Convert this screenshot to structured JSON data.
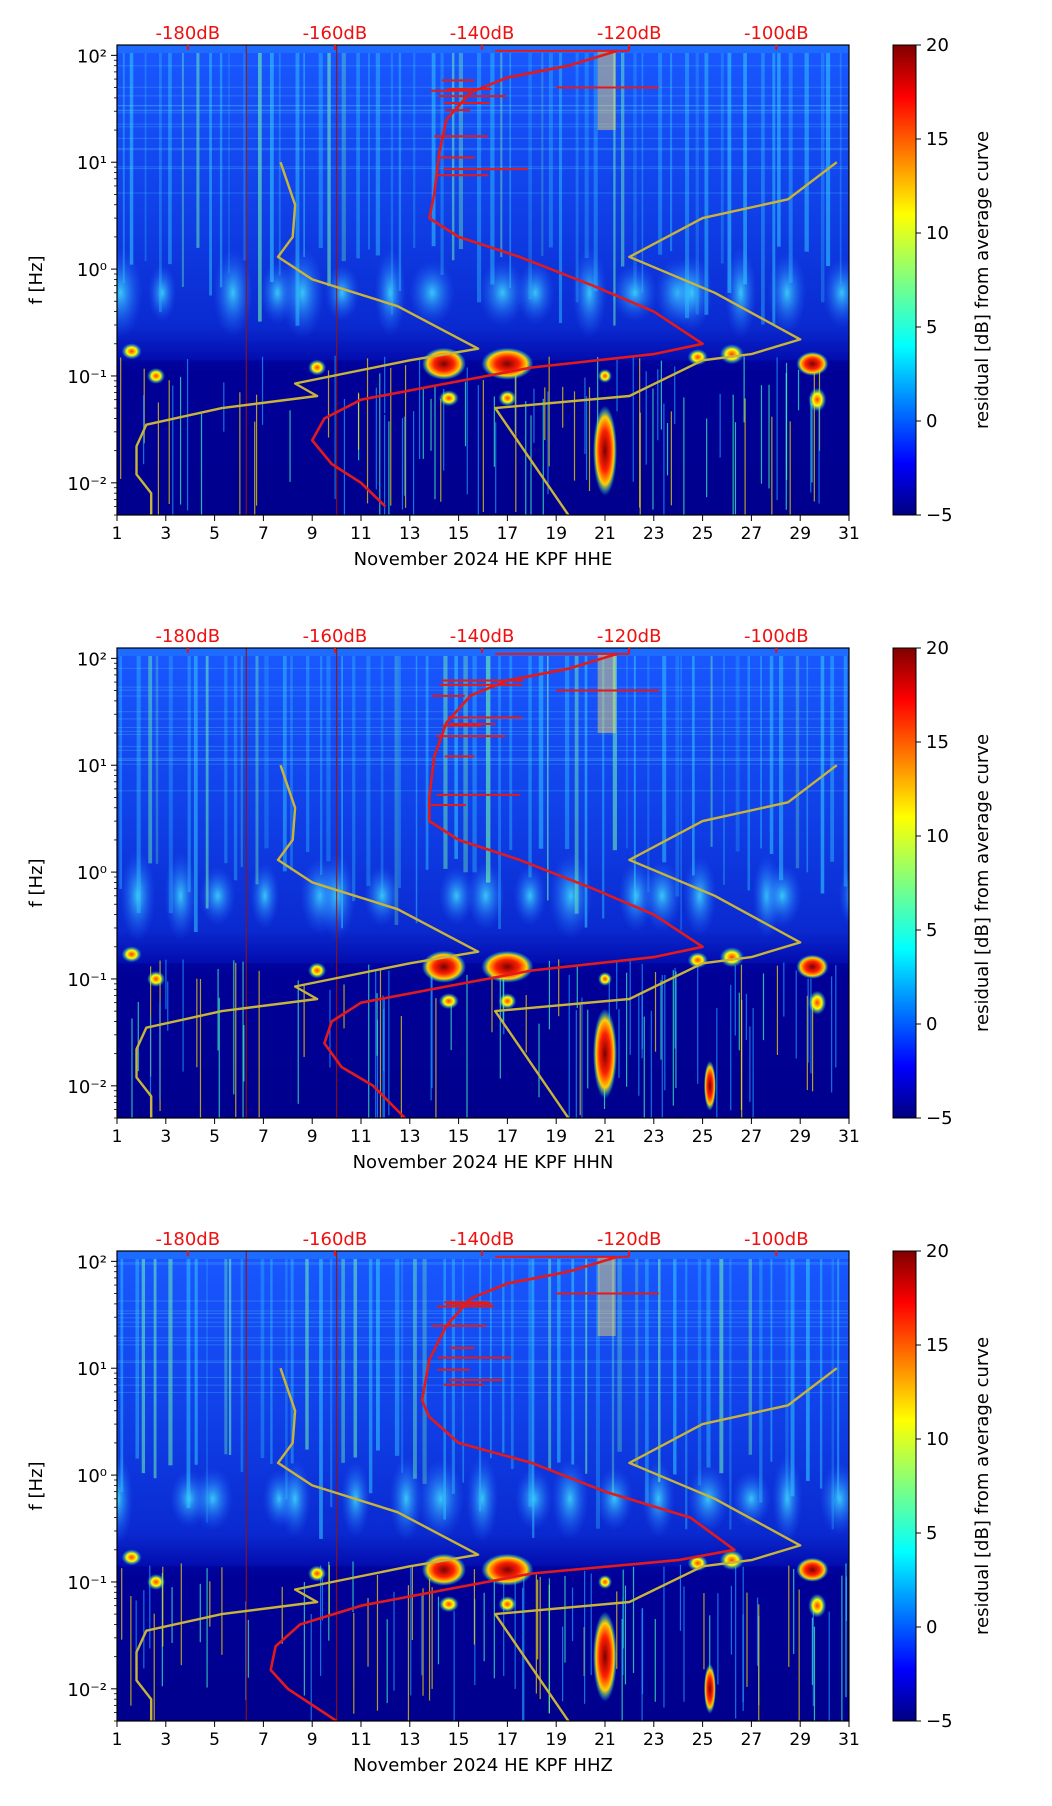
{
  "figure": {
    "colorbar_label": "residual [dB] from average curve",
    "colorbar_ticks": [
      "20",
      "15",
      "10",
      "5",
      "0",
      "−5"
    ],
    "colorbar_range": [
      -5,
      20
    ],
    "ylabel": "f [Hz]",
    "y_ticks": [
      "10²",
      "10¹",
      "10⁰",
      "10⁻¹",
      "10⁻²"
    ],
    "x_ticks": [
      "1",
      "3",
      "5",
      "7",
      "9",
      "11",
      "13",
      "15",
      "17",
      "19",
      "21",
      "23",
      "25",
      "27",
      "29",
      "31"
    ],
    "db_ticks": [
      "-180dB",
      "-160dB",
      "-140dB",
      "-120dB",
      "-100dB"
    ],
    "colors": {
      "red_curve": "#e31a1c",
      "nlnm_nhnm": "#c8b43a",
      "db_label": "#ee1111"
    }
  },
  "chart_data": [
    {
      "type": "heatmap",
      "title": "",
      "xlabel": "November 2024 HE KPF  HHE",
      "ylabel": "f [Hz]",
      "xlim": [
        1,
        31
      ],
      "ylim": [
        0.005,
        125
      ],
      "yscale": "log",
      "secondary_x": {
        "ticks": [
          -180,
          -160,
          -140,
          -120,
          -100
        ],
        "unit": "dB"
      },
      "curves": [
        {
          "name": "median PSD",
          "color": "#e31a1c",
          "points_day_freq": [
            [
              21.5,
              110
            ],
            [
              19.5,
              80
            ],
            [
              17,
              62
            ],
            [
              15.5,
              45
            ],
            [
              14.5,
              25
            ],
            [
              14.2,
              12
            ],
            [
              14,
              5
            ],
            [
              13.8,
              3
            ],
            [
              15,
              2
            ],
            [
              17.5,
              1.3
            ],
            [
              20.5,
              0.7
            ],
            [
              23,
              0.4
            ],
            [
              25,
              0.2
            ],
            [
              23,
              0.16
            ],
            [
              18,
              0.12
            ],
            [
              14.5,
              0.085
            ],
            [
              11,
              0.06
            ],
            [
              9.5,
              0.04
            ],
            [
              9,
              0.025
            ],
            [
              9.8,
              0.015
            ],
            [
              11,
              0.01
            ],
            [
              12,
              0.006
            ]
          ]
        },
        {
          "name": "NHNM",
          "color": "#c8b43a",
          "points_day_freq": [
            [
              30.5,
              10
            ],
            [
              28.5,
              4.5
            ],
            [
              25,
              3
            ],
            [
              22,
              1.3
            ],
            [
              25.5,
              0.6
            ],
            [
              29,
              0.22
            ],
            [
              27,
              0.16
            ],
            [
              25,
              0.14
            ],
            [
              22,
              0.065
            ],
            [
              16.5,
              0.05
            ],
            [
              19.5,
              0.005
            ]
          ]
        },
        {
          "name": "NLNM",
          "color": "#c8b43a",
          "points_day_freq": [
            [
              7.7,
              10
            ],
            [
              8.3,
              4
            ],
            [
              8.2,
              2
            ],
            [
              7.6,
              1.3
            ],
            [
              9,
              0.8
            ],
            [
              12.5,
              0.45
            ],
            [
              15.8,
              0.18
            ],
            [
              13,
              0.14
            ],
            [
              8.3,
              0.085
            ],
            [
              9.2,
              0.065
            ],
            [
              5.3,
              0.05
            ],
            [
              2.2,
              0.035
            ],
            [
              1.8,
              0.022
            ],
            [
              1.8,
              0.012
            ],
            [
              2.4,
              0.008
            ],
            [
              2.4,
              0.005
            ]
          ]
        }
      ]
    },
    {
      "type": "heatmap",
      "title": "",
      "xlabel": "November 2024 HE KPF  HHN",
      "ylabel": "f [Hz]",
      "xlim": [
        1,
        31
      ],
      "ylim": [
        0.005,
        125
      ],
      "yscale": "log",
      "secondary_x": {
        "ticks": [
          -180,
          -160,
          -140,
          -120,
          -100
        ],
        "unit": "dB"
      },
      "curves": [
        {
          "name": "median PSD",
          "color": "#e31a1c",
          "points_day_freq": [
            [
              21.5,
              110
            ],
            [
              19.5,
              80
            ],
            [
              17,
              62
            ],
            [
              15.5,
              45
            ],
            [
              14.5,
              25
            ],
            [
              14,
              12
            ],
            [
              13.8,
              5
            ],
            [
              13.8,
              3
            ],
            [
              15,
              2
            ],
            [
              17.5,
              1.3
            ],
            [
              20.5,
              0.7
            ],
            [
              23,
              0.4
            ],
            [
              25,
              0.2
            ],
            [
              23,
              0.16
            ],
            [
              18,
              0.12
            ],
            [
              14.5,
              0.085
            ],
            [
              11,
              0.06
            ],
            [
              9.8,
              0.04
            ],
            [
              9.5,
              0.025
            ],
            [
              10.2,
              0.015
            ],
            [
              11.5,
              0.01
            ],
            [
              12.8,
              0.005
            ]
          ]
        },
        {
          "name": "NHNM",
          "color": "#c8b43a",
          "points_day_freq": [
            [
              30.5,
              10
            ],
            [
              28.5,
              4.5
            ],
            [
              25,
              3
            ],
            [
              22,
              1.3
            ],
            [
              25.5,
              0.6
            ],
            [
              29,
              0.22
            ],
            [
              27,
              0.16
            ],
            [
              25,
              0.14
            ],
            [
              22,
              0.065
            ],
            [
              16.5,
              0.05
            ],
            [
              19.5,
              0.005
            ]
          ]
        },
        {
          "name": "NLNM",
          "color": "#c8b43a",
          "points_day_freq": [
            [
              7.7,
              10
            ],
            [
              8.3,
              4
            ],
            [
              8.2,
              2
            ],
            [
              7.6,
              1.3
            ],
            [
              9,
              0.8
            ],
            [
              12.5,
              0.45
            ],
            [
              15.8,
              0.18
            ],
            [
              13,
              0.14
            ],
            [
              8.3,
              0.085
            ],
            [
              9.2,
              0.065
            ],
            [
              5.3,
              0.05
            ],
            [
              2.2,
              0.035
            ],
            [
              1.8,
              0.022
            ],
            [
              1.8,
              0.012
            ],
            [
              2.4,
              0.008
            ],
            [
              2.4,
              0.005
            ]
          ]
        }
      ]
    },
    {
      "type": "heatmap",
      "title": "",
      "xlabel": "November 2024 HE KPF  HHZ",
      "ylabel": "f [Hz]",
      "xlim": [
        1,
        31
      ],
      "ylim": [
        0.005,
        125
      ],
      "yscale": "log",
      "secondary_x": {
        "ticks": [
          -180,
          -160,
          -140,
          -120,
          -100
        ],
        "unit": "dB"
      },
      "curves": [
        {
          "name": "median PSD",
          "color": "#e31a1c",
          "points_day_freq": [
            [
              21.5,
              110
            ],
            [
              19.5,
              80
            ],
            [
              17,
              62
            ],
            [
              15.5,
              45
            ],
            [
              14.5,
              25
            ],
            [
              13.8,
              12
            ],
            [
              13.5,
              5
            ],
            [
              13.8,
              3.5
            ],
            [
              15,
              2
            ],
            [
              18,
              1.3
            ],
            [
              21,
              0.7
            ],
            [
              24.5,
              0.4
            ],
            [
              26.3,
              0.2
            ],
            [
              24,
              0.16
            ],
            [
              18,
              0.12
            ],
            [
              14.5,
              0.085
            ],
            [
              11,
              0.06
            ],
            [
              8.5,
              0.04
            ],
            [
              7.5,
              0.025
            ],
            [
              7.3,
              0.015
            ],
            [
              8,
              0.01
            ],
            [
              10,
              0.005
            ]
          ]
        },
        {
          "name": "NHNM",
          "color": "#c8b43a",
          "points_day_freq": [
            [
              30.5,
              10
            ],
            [
              28.5,
              4.5
            ],
            [
              25,
              3
            ],
            [
              22,
              1.3
            ],
            [
              25.5,
              0.6
            ],
            [
              29,
              0.22
            ],
            [
              27,
              0.16
            ],
            [
              25,
              0.14
            ],
            [
              22,
              0.065
            ],
            [
              16.5,
              0.05
            ],
            [
              19.5,
              0.005
            ]
          ]
        },
        {
          "name": "NLNM",
          "color": "#c8b43a",
          "points_day_freq": [
            [
              7.7,
              10
            ],
            [
              8.3,
              4
            ],
            [
              8.2,
              2
            ],
            [
              7.6,
              1.3
            ],
            [
              9,
              0.8
            ],
            [
              12.5,
              0.45
            ],
            [
              15.8,
              0.18
            ],
            [
              13,
              0.14
            ],
            [
              8.3,
              0.085
            ],
            [
              9.2,
              0.065
            ],
            [
              5.3,
              0.05
            ],
            [
              2.2,
              0.035
            ],
            [
              1.8,
              0.022
            ],
            [
              1.8,
              0.012
            ],
            [
              2.4,
              0.008
            ],
            [
              2.4,
              0.005
            ]
          ]
        }
      ]
    }
  ]
}
